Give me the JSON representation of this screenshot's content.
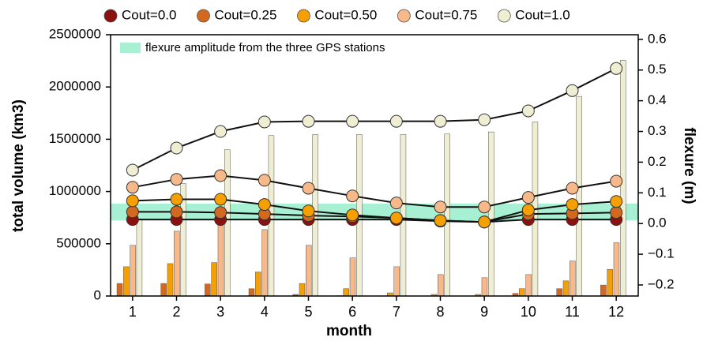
{
  "chart_data": {
    "type": "bar",
    "xlabel": "month",
    "ylabel": "total volume (km3)",
    "y2label": "flexure (m)",
    "categories": [
      "1",
      "2",
      "3",
      "4",
      "5",
      "6",
      "7",
      "8",
      "9",
      "10",
      "11",
      "12"
    ],
    "ylim": [
      0,
      2500000
    ],
    "yticks": [
      0,
      500000,
      1000000,
      1500000,
      2000000,
      2500000
    ],
    "y2lim": [
      -0.236,
      0.615
    ],
    "y2ticks": [
      {
        "value": -0.2,
        "label": "−0.2"
      },
      {
        "value": -0.1,
        "label": "−0.1"
      },
      {
        "value": 0,
        "label": "0.0"
      },
      0.1,
      0.2,
      0.3,
      0.4,
      0.5,
      0.6
    ],
    "band": {
      "label": "flexure amplitude from the three GPS stations",
      "range": [
        0.01,
        0.065
      ],
      "color": "#a8f0d4",
      "axis": "y2"
    },
    "series": [
      {
        "type": "bar",
        "color": "#8b1010",
        "values": [
          0,
          0,
          0,
          0,
          0,
          0,
          0,
          0,
          0,
          0,
          0,
          0
        ]
      },
      {
        "type": "bar",
        "color": "#d2691e",
        "values": [
          120000,
          120000,
          115000,
          70000,
          15000,
          3000,
          1000,
          1000,
          1000,
          25000,
          70000,
          105000
        ]
      },
      {
        "type": "bar",
        "color": "#f5a000",
        "values": [
          280000,
          310000,
          320000,
          230000,
          120000,
          70000,
          30000,
          15000,
          15000,
          70000,
          145000,
          255000
        ]
      },
      {
        "type": "bar",
        "color": "#f7b98a",
        "values": [
          485000,
          620000,
          705000,
          635000,
          485000,
          365000,
          280000,
          205000,
          175000,
          205000,
          335000,
          510000
        ]
      },
      {
        "type": "bar",
        "color": "#efedd2",
        "values": [
          735000,
          1075000,
          1400000,
          1535000,
          1545000,
          1545000,
          1545000,
          1550000,
          1570000,
          1665000,
          1910000,
          2255000
        ]
      },
      {
        "type": "line",
        "axis": "y2",
        "name": "Cout=0.0",
        "color": "#8b1010",
        "values": [
          0.013,
          0.013,
          0.013,
          0.013,
          0.013,
          0.013,
          0.013,
          0.008,
          0.005,
          0.013,
          0.013,
          0.013
        ]
      },
      {
        "type": "line",
        "axis": "y2",
        "name": "Cout=0.25",
        "color": "#d2691e",
        "values": [
          0.038,
          0.038,
          0.036,
          0.031,
          0.026,
          0.023,
          0.018,
          0.01,
          0.005,
          0.031,
          0.033,
          0.036
        ]
      },
      {
        "type": "line",
        "axis": "y2",
        "name": "Cout=0.50",
        "color": "#f5a000",
        "values": [
          0.074,
          0.079,
          0.079,
          0.062,
          0.041,
          0.028,
          0.018,
          0.01,
          0.005,
          0.044,
          0.062,
          0.072
        ]
      },
      {
        "type": "line",
        "axis": "y2",
        "name": "Cout=0.75",
        "color": "#f7b98a",
        "values": [
          0.118,
          0.144,
          0.156,
          0.141,
          0.115,
          0.09,
          0.067,
          0.054,
          0.054,
          0.085,
          0.115,
          0.138
        ]
      },
      {
        "type": "line",
        "axis": "y2",
        "name": "Cout=1.0",
        "color": "#efedd2",
        "values": [
          0.174,
          0.246,
          0.3,
          0.331,
          0.333,
          0.333,
          0.333,
          0.333,
          0.338,
          0.367,
          0.433,
          0.505
        ]
      }
    ]
  }
}
